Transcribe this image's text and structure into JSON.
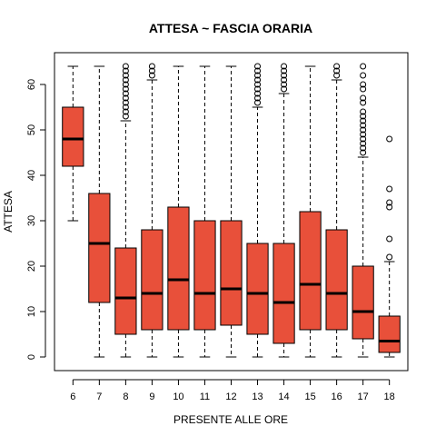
{
  "chart_data": {
    "type": "boxplot",
    "title": "ATTESA ~ FASCIA ORARIA",
    "xlabel": "PRESENTE ALLE ORE",
    "ylabel": "ATTESA",
    "ylim": [
      -3,
      67
    ],
    "yticks": [
      0,
      10,
      20,
      30,
      40,
      50,
      60
    ],
    "box_color": "#E8503A",
    "grid": false,
    "legend": "none",
    "categories": [
      "6",
      "7",
      "8",
      "9",
      "10",
      "11",
      "12",
      "13",
      "14",
      "15",
      "16",
      "17",
      "18"
    ],
    "boxes": [
      {
        "category": "6",
        "whisker_low": 30,
        "q1": 42,
        "median": 48,
        "q3": 55,
        "whisker_high": 64,
        "outliers": []
      },
      {
        "category": "7",
        "whisker_low": 0,
        "q1": 12,
        "median": 25,
        "q3": 36,
        "whisker_high": 64,
        "outliers": []
      },
      {
        "category": "8",
        "whisker_low": 0,
        "q1": 5,
        "median": 13,
        "q3": 24,
        "whisker_high": 52,
        "outliers": [
          53,
          54,
          55,
          56,
          57,
          58,
          59,
          60,
          61,
          62,
          63,
          64
        ]
      },
      {
        "category": "9",
        "whisker_low": 0,
        "q1": 6,
        "median": 14,
        "q3": 28,
        "whisker_high": 61,
        "outliers": [
          62,
          63,
          64
        ]
      },
      {
        "category": "10",
        "whisker_low": 0,
        "q1": 6,
        "median": 17,
        "q3": 33,
        "whisker_high": 64,
        "outliers": []
      },
      {
        "category": "11",
        "whisker_low": 0,
        "q1": 6,
        "median": 14,
        "q3": 30,
        "whisker_high": 64,
        "outliers": []
      },
      {
        "category": "12",
        "whisker_low": 0,
        "q1": 7,
        "median": 15,
        "q3": 30,
        "whisker_high": 64,
        "outliers": []
      },
      {
        "category": "13",
        "whisker_low": 0,
        "q1": 5,
        "median": 14,
        "q3": 25,
        "whisker_high": 55,
        "outliers": [
          56,
          57,
          58,
          59,
          60,
          61,
          62,
          63,
          64
        ]
      },
      {
        "category": "14",
        "whisker_low": 0,
        "q1": 3,
        "median": 12,
        "q3": 25,
        "whisker_high": 58,
        "outliers": [
          59,
          60,
          61,
          62,
          63,
          64
        ]
      },
      {
        "category": "15",
        "whisker_low": 0,
        "q1": 6,
        "median": 16,
        "q3": 32,
        "whisker_high": 64,
        "outliers": []
      },
      {
        "category": "16",
        "whisker_low": 0,
        "q1": 6,
        "median": 14,
        "q3": 28,
        "whisker_high": 61,
        "outliers": [
          62,
          63,
          64
        ]
      },
      {
        "category": "17",
        "whisker_low": 0,
        "q1": 4,
        "median": 10,
        "q3": 20,
        "whisker_high": 44,
        "outliers": [
          45,
          46,
          47,
          48,
          49,
          50,
          51,
          52,
          53,
          54,
          56,
          57,
          59,
          60,
          62,
          64
        ]
      },
      {
        "category": "18",
        "whisker_low": 0,
        "q1": 1,
        "median": 3.5,
        "q3": 9,
        "whisker_high": 21,
        "outliers": [
          22,
          26,
          33,
          34,
          37,
          48
        ]
      }
    ]
  }
}
